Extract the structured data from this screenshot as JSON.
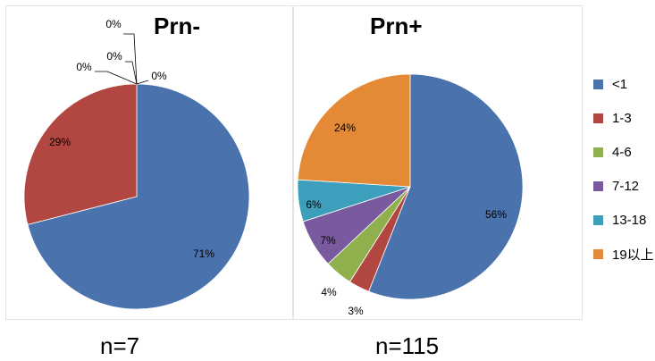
{
  "chart_data": [
    {
      "type": "pie",
      "title": "Prn-",
      "caption": "n=7",
      "categories": [
        "<1",
        "1-3",
        "4-6",
        "7-12",
        "13-18",
        "19以上"
      ],
      "values": [
        71,
        29,
        0,
        0,
        0,
        0
      ],
      "labels": [
        "71%",
        "29%",
        "0%",
        "0%",
        "0%",
        "0%"
      ]
    },
    {
      "type": "pie",
      "title": "Prn+",
      "caption": "n=115",
      "categories": [
        "<1",
        "1-3",
        "4-6",
        "7-12",
        "13-18",
        "19以上"
      ],
      "values": [
        56,
        3,
        4,
        7,
        6,
        24
      ],
      "labels": [
        "56%",
        "3%",
        "4%",
        "7%",
        "6%",
        "24%"
      ]
    }
  ],
  "legend": {
    "placement": "right",
    "items": [
      {
        "label": "<1",
        "color": "#4a72ad"
      },
      {
        "label": "1-3",
        "color": "#b24641"
      },
      {
        "label": "4-6",
        "color": "#8fb04c"
      },
      {
        "label": "7-12",
        "color": "#7a5a9e"
      },
      {
        "label": "13-18",
        "color": "#3e9fbc"
      },
      {
        "label": "19以上",
        "color": "#e48a37"
      }
    ]
  }
}
